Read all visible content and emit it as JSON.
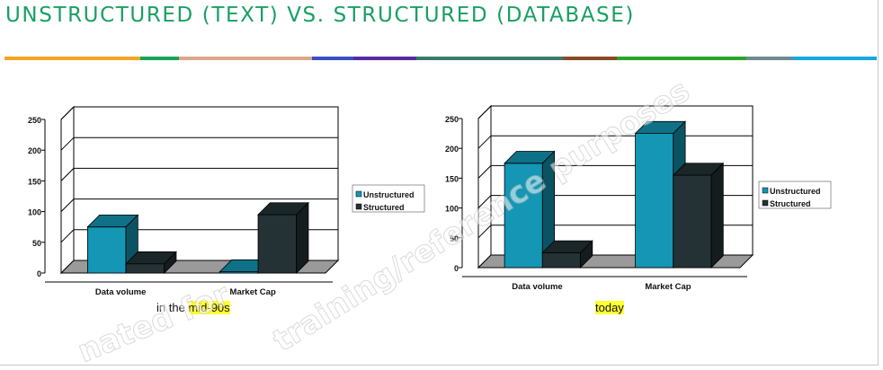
{
  "slide": {
    "title": "UNSTRUCTURED (TEXT) VS. STRUCTURED (DATABASE)",
    "title_color": "#1a9f63",
    "accent_strip_colors": [
      "#f5a623",
      "#1aa35a",
      "#dda88a",
      "#dda88a",
      "#3b4fc4",
      "#5b2aa0",
      "#3a7a6a",
      "#3a7a6a",
      "#8a4a26",
      "#2aa52a",
      "#2aa52a",
      "#6e8a93",
      "#15a9e0"
    ]
  },
  "watermark": {
    "line1": "nated for",
    "line2": "training/reference purposes"
  },
  "captions": {
    "left_prefix": "in the ",
    "left_highlight": "mid-90s",
    "right_highlight": "today"
  },
  "chart_data": [
    {
      "type": "bar",
      "categories": [
        "Data volume",
        "Market Cap"
      ],
      "series": [
        {
          "name": "Unstructured",
          "values": [
            75,
            2
          ],
          "color": "#1496b4"
        },
        {
          "name": "Structured",
          "values": [
            15,
            95
          ],
          "color": "#243236"
        }
      ],
      "ylim": [
        0,
        250
      ],
      "yticks": [
        "0",
        "50",
        "100",
        "150",
        "200",
        "250"
      ],
      "grid": true,
      "legend_position": "right",
      "three_d": true
    },
    {
      "type": "bar",
      "categories": [
        "Data volume",
        "Market Cap"
      ],
      "series": [
        {
          "name": "Unstructured",
          "values": [
            175,
            225
          ],
          "color": "#1496b4"
        },
        {
          "name": "Structured",
          "values": [
            25,
            155
          ],
          "color": "#243236"
        }
      ],
      "ylim": [
        0,
        250
      ],
      "yticks": [
        "0",
        "50",
        "100",
        "150",
        "200",
        "250"
      ],
      "grid": true,
      "legend_position": "right",
      "three_d": true
    }
  ]
}
